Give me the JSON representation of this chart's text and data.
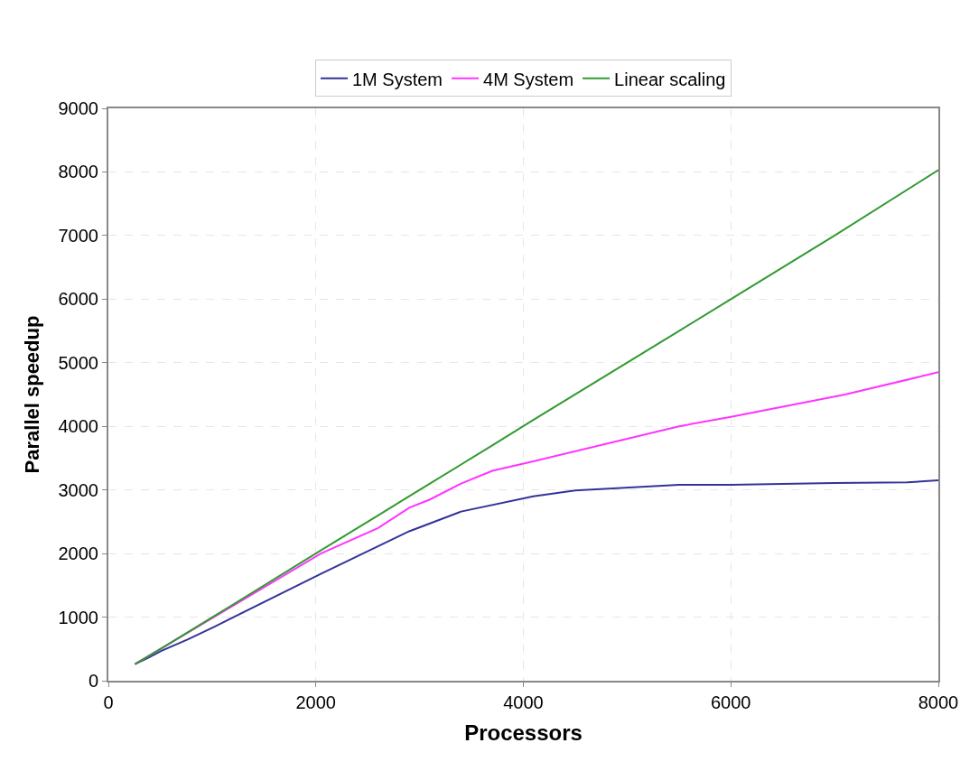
{
  "chart_data": {
    "type": "line",
    "xlabel": "Processors",
    "ylabel": "Parallel speedup",
    "xlim": [
      0,
      8000
    ],
    "xticks": [
      0,
      2000,
      4000,
      6000,
      8000
    ],
    "ylim": [
      0,
      9000
    ],
    "yticks": [
      0,
      1000,
      2000,
      3000,
      4000,
      5000,
      6000,
      7000,
      8000,
      9000
    ],
    "grid": true,
    "legend": "top",
    "line_style": "solid",
    "marker": "none",
    "series": [
      {
        "name": "1M System",
        "color": "#333399",
        "x": [
          256,
          384,
          512,
          768,
          1024,
          2048,
          2900,
          3400,
          4096,
          4500,
          5500,
          6000,
          7000,
          7700,
          8000
        ],
        "values": [
          260,
          360,
          470,
          650,
          850,
          1680,
          2350,
          2660,
          2900,
          2990,
          3080,
          3080,
          3110,
          3120,
          3150
        ]
      },
      {
        "name": "4M System",
        "color": "#ff33ff",
        "x": [
          256,
          512,
          2048,
          2600,
          2900,
          3100,
          3400,
          3700,
          4096,
          5500,
          6000,
          7100,
          8000
        ],
        "values": [
          260,
          510,
          2000,
          2400,
          2720,
          2850,
          3100,
          3300,
          3450,
          4000,
          4150,
          4500,
          4850
        ]
      },
      {
        "name": "Linear scaling",
        "color": "#339933",
        "x": [
          256,
          512,
          1024,
          2048,
          2600,
          2900,
          3400,
          3700,
          4096,
          5500,
          6000,
          7000,
          8000
        ],
        "values": [
          260,
          510,
          1020,
          2050,
          2600,
          2900,
          3400,
          3700,
          4100,
          5500,
          6000,
          7000,
          8030
        ]
      }
    ]
  }
}
